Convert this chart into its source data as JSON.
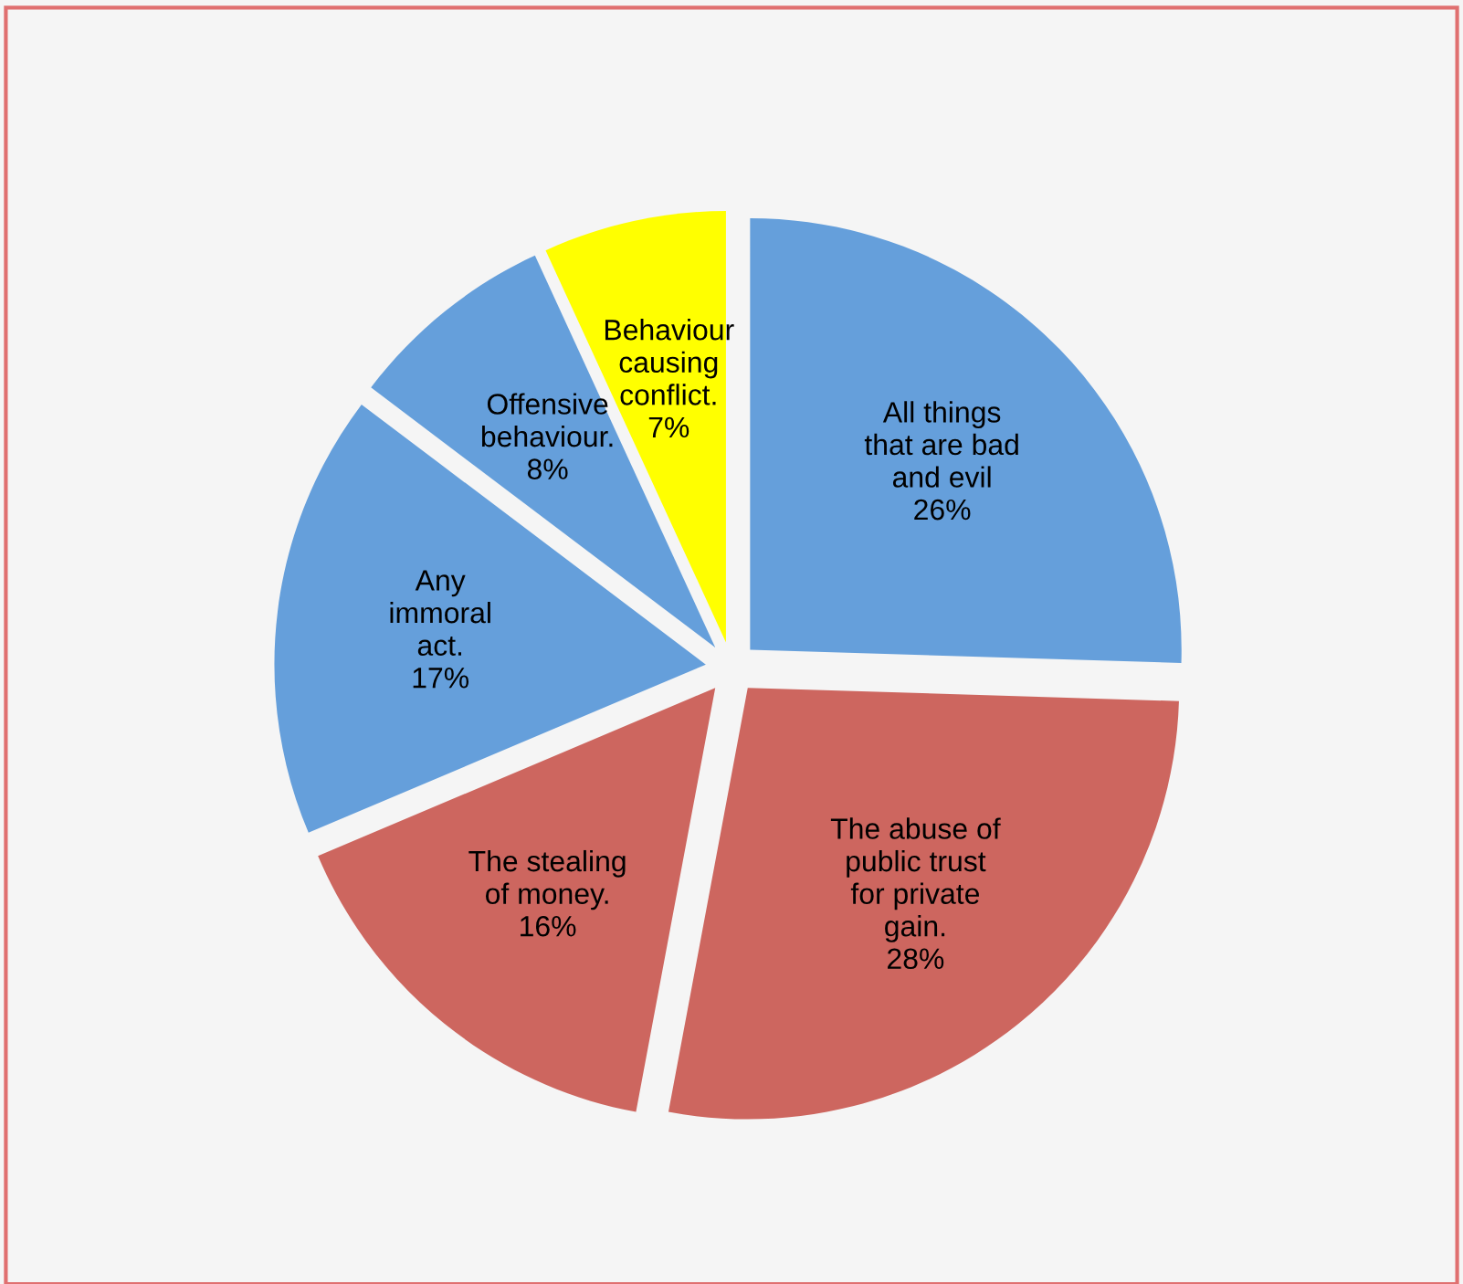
{
  "chart_data": {
    "type": "pie",
    "categories": [
      "All things\nthat are bad\nand evil",
      "The abuse of\npublic trust\nfor private\ngain.",
      "The stealing\nof money.",
      "Any\nimmoral\nact.",
      "Offensive\nbehaviour.",
      "Behaviour\ncausing\nconflict."
    ],
    "values": [
      26,
      28,
      16,
      17,
      8,
      7
    ],
    "value_labels": [
      "26%",
      "28%",
      "16%",
      "17%",
      "8%",
      "7%"
    ],
    "colors": [
      "#659fdb",
      "#cd665f",
      "#cd665f",
      "#659fdb",
      "#659fdb",
      "#ffff00"
    ],
    "legend": false
  }
}
